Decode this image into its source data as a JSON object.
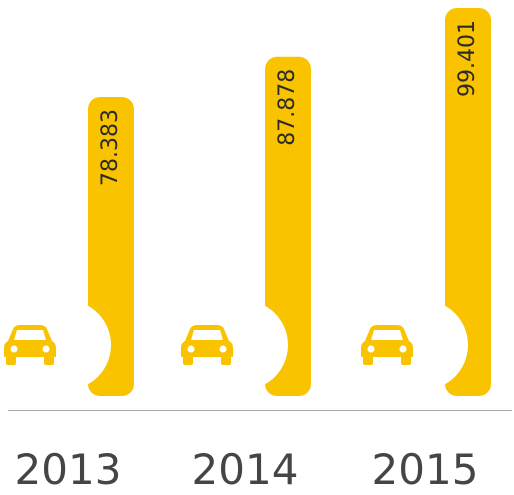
{
  "chart_data": {
    "type": "bar",
    "categories": [
      "2013",
      "2014",
      "2015"
    ],
    "values": [
      78.383,
      87.878,
      99.401
    ],
    "color": "#f9c300"
  }
}
